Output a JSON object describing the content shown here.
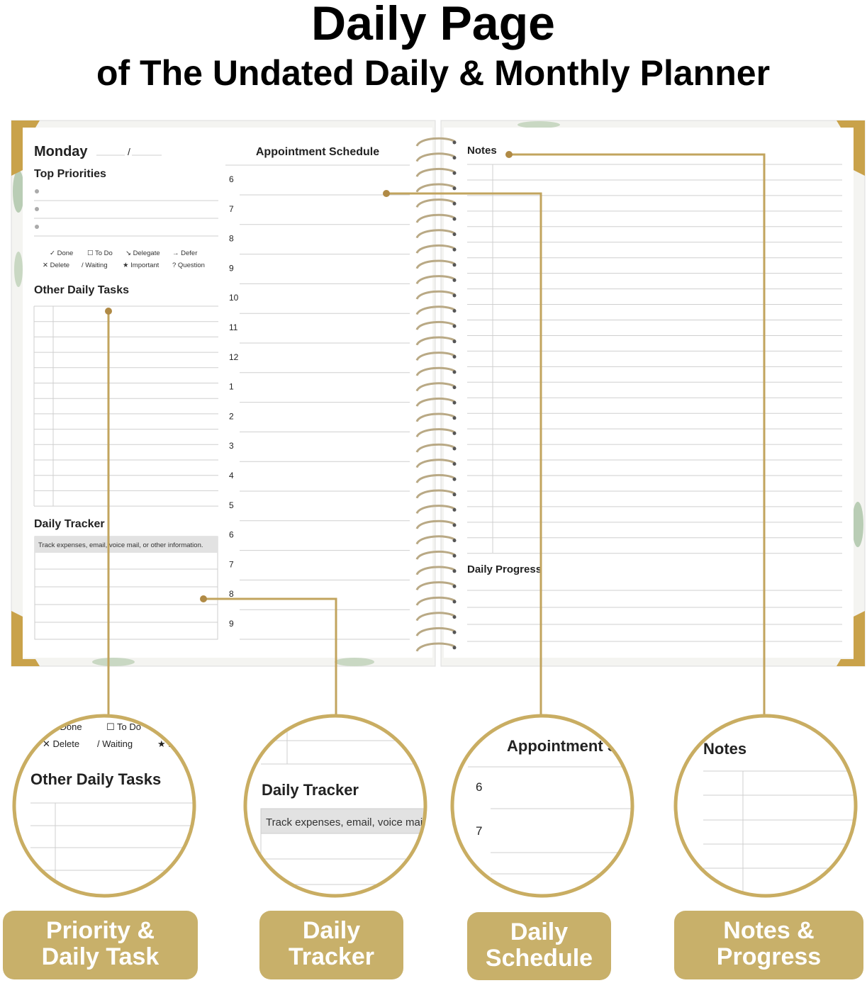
{
  "header": {
    "title": "Daily Page",
    "subtitle": "of The Undated Daily & Monthly Planner"
  },
  "left_page": {
    "day": "Monday",
    "priorities_heading": "Top Priorities",
    "legend": [
      "✓ Done",
      "☐ To Do",
      "↘ Delegate",
      "→ Defer",
      "✕ Delete",
      "/ Waiting",
      "★ Important",
      "? Question"
    ],
    "tasks_heading": "Other Daily Tasks",
    "tracker_heading": "Daily Tracker",
    "tracker_hint": "Track expenses, email, voice mail, or other information."
  },
  "schedule": {
    "heading": "Appointment Schedule",
    "hours": [
      "6",
      "7",
      "8",
      "9",
      "10",
      "11",
      "12",
      "1",
      "2",
      "3",
      "4",
      "5",
      "6",
      "7",
      "8",
      "9"
    ]
  },
  "right_page": {
    "notes_heading": "Notes",
    "progress_heading": "Daily Progress"
  },
  "labels": [
    [
      "Priority &",
      "Daily Task"
    ],
    [
      "Daily",
      "Tracker"
    ],
    [
      "Daily",
      "Schedule"
    ],
    [
      "Notes &",
      "Progress"
    ]
  ]
}
